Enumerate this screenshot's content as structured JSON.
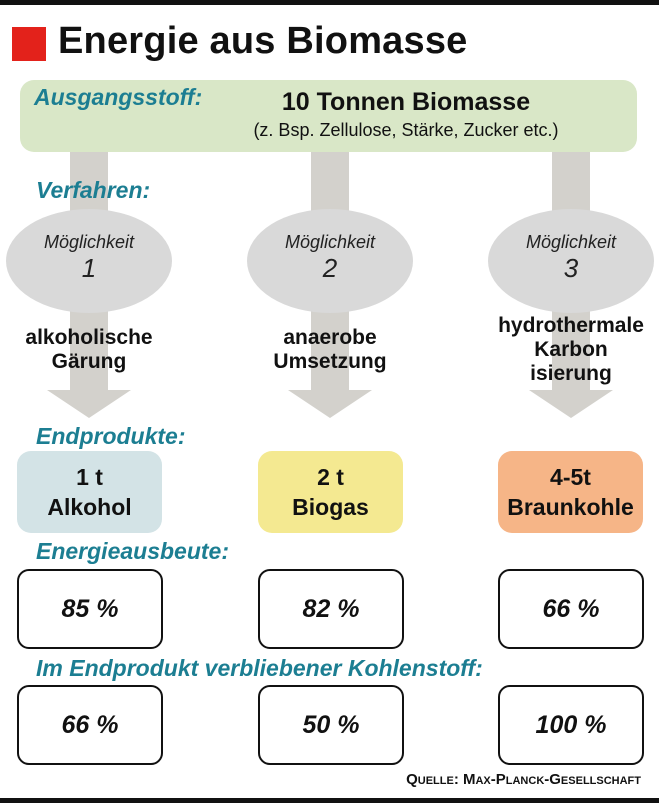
{
  "title": "Energie aus Biomasse",
  "colors": {
    "title_square": "#e3221b",
    "section_label": "#1c7e92",
    "source_box": "#d9e7c7",
    "arrow": "#d3d1cc",
    "ellipse": "#d9d9d9",
    "product_1": "#d3e3e6",
    "product_2": "#f4e991",
    "product_3": "#f6b587"
  },
  "labels": {
    "ausgangsstoff": "Ausgangsstoff:",
    "verfahren": "Verfahren:",
    "endprodukte": "Endprodukte:",
    "energieausbeute": "Energieausbeute:",
    "kohlenstoff": "Im Endprodukt verbliebener Kohlenstoff:"
  },
  "source": {
    "main": "10 Tonnen Biomasse",
    "sub": "(z. Bsp. Zellulose, Stärke, Zucker etc.)"
  },
  "options": [
    {
      "word": "Möglichkeit",
      "num": "1",
      "process": [
        "alkoholische",
        "Gärung"
      ],
      "amount": "1 t",
      "product": "Alkohol",
      "energy": "85 %",
      "carbon": "66 %"
    },
    {
      "word": "Möglichkeit",
      "num": "2",
      "process": [
        "anaerobe",
        "Umsetzung"
      ],
      "amount": "2 t",
      "product": "Biogas",
      "energy": "82 %",
      "carbon": "50 %"
    },
    {
      "word": "Möglichkeit",
      "num": "3",
      "process": [
        "hydrothermale",
        "Karbon",
        "isierung"
      ],
      "amount": "4-5t",
      "product": "Braunkohle",
      "energy": "66 %",
      "carbon": "100 %"
    }
  ],
  "credit": "Quelle: Max-Planck-Gesellschaft"
}
